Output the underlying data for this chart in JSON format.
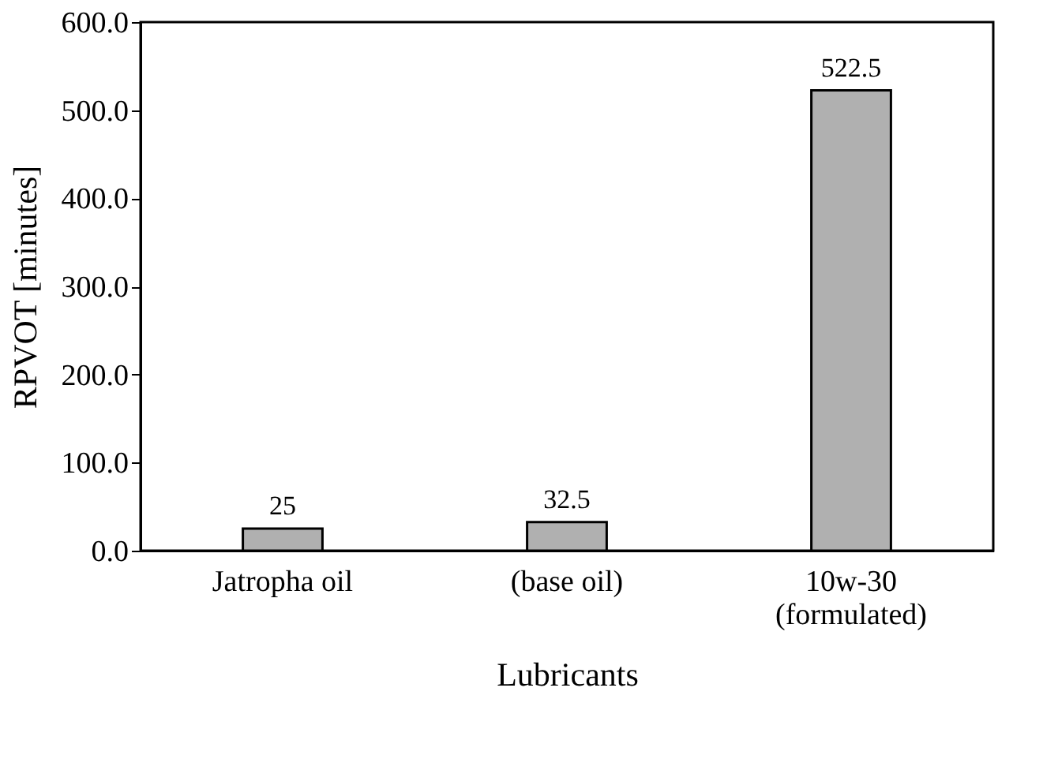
{
  "chart_data": {
    "type": "bar",
    "xlabel": "Lubricants",
    "ylabel": "RPVOT [minutes]",
    "categories": [
      "Jatropha oil",
      "(base oil)",
      "10w-30\n(formulated)"
    ],
    "values": [
      25,
      32.5,
      522.5
    ],
    "color": "#b0b0b0",
    "ylim": [
      0,
      600
    ],
    "yticks": [
      {
        "value": 0,
        "label": "0.0"
      },
      {
        "value": 100,
        "label": "100.0"
      },
      {
        "value": 200,
        "label": "200.0"
      },
      {
        "value": 300,
        "label": "300.0"
      },
      {
        "value": 400,
        "label": "400.0"
      },
      {
        "value": 500,
        "label": "500.0"
      },
      {
        "value": 600,
        "label": "600.0"
      }
    ],
    "data_labels": true,
    "grid": false
  }
}
